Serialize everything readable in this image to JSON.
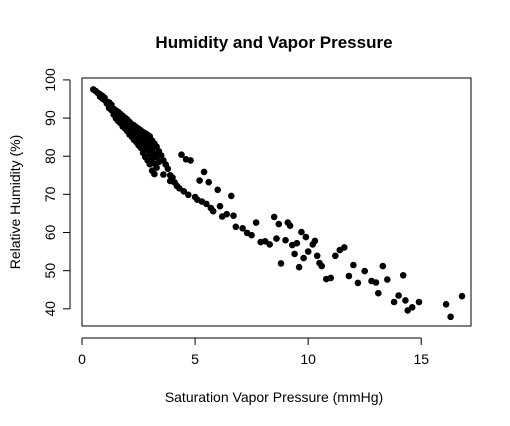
{
  "chart_data": {
    "type": "scatter",
    "title": "Humidity and Vapor Pressure",
    "xlabel": "Saturation Vapor Pressure (mmHg)",
    "ylabel": "Relative Humidity (%)",
    "xlim": [
      0,
      17.2
    ],
    "ylim": [
      35.5,
      100.5
    ],
    "xticks": [
      0,
      5,
      10,
      15
    ],
    "xtick_labels": [
      "0",
      "5",
      "10",
      "15"
    ],
    "yticks": [
      40,
      50,
      60,
      70,
      80,
      90,
      100
    ],
    "ytick_labels": [
      "40",
      "50",
      "60",
      "70",
      "80",
      "90",
      "100"
    ],
    "grid": false,
    "legend": "none",
    "marker_color": "#000000",
    "points": [
      [
        0.5,
        97.5
      ],
      [
        0.6,
        97.1
      ],
      [
        0.7,
        96.6
      ],
      [
        0.8,
        96.2
      ],
      [
        0.8,
        95.6
      ],
      [
        0.9,
        95.8
      ],
      [
        0.9,
        95.1
      ],
      [
        1.0,
        94.7
      ],
      [
        1.0,
        95.3
      ],
      [
        1.1,
        94.3
      ],
      [
        1.1,
        93.8
      ],
      [
        1.2,
        94.1
      ],
      [
        1.2,
        93.2
      ],
      [
        1.2,
        92.6
      ],
      [
        1.3,
        93.5
      ],
      [
        1.3,
        92.8
      ],
      [
        1.3,
        92.1
      ],
      [
        1.4,
        92.4
      ],
      [
        1.4,
        91.6
      ],
      [
        1.4,
        90.9
      ],
      [
        1.5,
        92.0
      ],
      [
        1.5,
        91.3
      ],
      [
        1.5,
        90.6
      ],
      [
        1.5,
        89.9
      ],
      [
        1.6,
        91.6
      ],
      [
        1.6,
        90.8
      ],
      [
        1.6,
        90.0
      ],
      [
        1.6,
        89.2
      ],
      [
        1.7,
        91.1
      ],
      [
        1.7,
        90.3
      ],
      [
        1.7,
        89.5
      ],
      [
        1.7,
        88.7
      ],
      [
        1.8,
        90.6
      ],
      [
        1.8,
        89.6
      ],
      [
        1.8,
        88.6
      ],
      [
        1.8,
        87.8
      ],
      [
        1.9,
        90.1
      ],
      [
        1.9,
        89.1
      ],
      [
        1.9,
        88.2
      ],
      [
        1.9,
        87.3
      ],
      [
        2.0,
        89.6
      ],
      [
        2.0,
        88.5
      ],
      [
        2.0,
        87.6
      ],
      [
        2.0,
        86.6
      ],
      [
        2.1,
        89.0
      ],
      [
        2.1,
        87.9
      ],
      [
        2.1,
        86.9
      ],
      [
        2.1,
        85.7
      ],
      [
        2.2,
        88.4
      ],
      [
        2.2,
        87.3
      ],
      [
        2.2,
        86.2
      ],
      [
        2.2,
        85.1
      ],
      [
        2.3,
        88.1
      ],
      [
        2.3,
        86.8
      ],
      [
        2.3,
        85.6
      ],
      [
        2.3,
        84.3
      ],
      [
        2.4,
        87.6
      ],
      [
        2.4,
        86.3
      ],
      [
        2.4,
        84.9
      ],
      [
        2.4,
        83.7
      ],
      [
        2.5,
        87.2
      ],
      [
        2.5,
        85.8
      ],
      [
        2.5,
        84.3
      ],
      [
        2.5,
        82.9
      ],
      [
        2.6,
        86.8
      ],
      [
        2.6,
        85.2
      ],
      [
        2.6,
        83.6
      ],
      [
        2.6,
        82.2
      ],
      [
        2.7,
        86.3
      ],
      [
        2.7,
        84.7
      ],
      [
        2.7,
        82.8
      ],
      [
        2.7,
        80.9
      ],
      [
        2.8,
        86.0
      ],
      [
        2.8,
        84.2
      ],
      [
        2.8,
        82.3
      ],
      [
        2.8,
        79.8
      ],
      [
        2.9,
        85.6
      ],
      [
        2.9,
        83.7
      ],
      [
        2.9,
        81.6
      ],
      [
        2.9,
        78.9
      ],
      [
        3.0,
        85.2
      ],
      [
        3.0,
        83.0
      ],
      [
        3.0,
        80.6
      ],
      [
        3.0,
        77.9
      ],
      [
        3.1,
        84.1
      ],
      [
        3.1,
        81.8
      ],
      [
        3.1,
        79.4
      ],
      [
        3.1,
        76.2
      ],
      [
        3.2,
        83.3
      ],
      [
        3.2,
        80.7
      ],
      [
        3.2,
        78.1
      ],
      [
        3.2,
        75.3
      ],
      [
        3.3,
        82.5
      ],
      [
        3.3,
        79.8
      ],
      [
        3.3,
        77.0
      ],
      [
        3.4,
        81.3
      ],
      [
        3.4,
        78.5
      ],
      [
        3.5,
        80.2
      ],
      [
        3.6,
        78.9
      ],
      [
        3.6,
        75.2
      ],
      [
        3.7,
        77.8
      ],
      [
        3.8,
        76.7
      ],
      [
        3.9,
        75.0
      ],
      [
        3.9,
        73.5
      ],
      [
        4.0,
        74.4
      ],
      [
        4.1,
        73.1
      ],
      [
        4.2,
        72.2
      ],
      [
        4.3,
        71.6
      ],
      [
        4.4,
        80.4
      ],
      [
        4.5,
        70.8
      ],
      [
        4.6,
        79.2
      ],
      [
        4.7,
        69.9
      ],
      [
        4.8,
        78.9
      ],
      [
        5.0,
        69.3
      ],
      [
        5.1,
        68.6
      ],
      [
        5.2,
        73.6
      ],
      [
        5.3,
        68.1
      ],
      [
        5.4,
        75.9
      ],
      [
        5.5,
        67.5
      ],
      [
        5.6,
        73.2
      ],
      [
        5.7,
        66.4
      ],
      [
        5.8,
        65.6
      ],
      [
        6.0,
        71.2
      ],
      [
        6.1,
        66.9
      ],
      [
        6.2,
        64.2
      ],
      [
        6.4,
        64.8
      ],
      [
        6.6,
        69.6
      ],
      [
        6.7,
        64.4
      ],
      [
        6.8,
        61.5
      ],
      [
        7.1,
        61.1
      ],
      [
        7.3,
        59.9
      ],
      [
        7.5,
        59.3
      ],
      [
        7.7,
        62.6
      ],
      [
        7.9,
        57.5
      ],
      [
        8.1,
        57.7
      ],
      [
        8.3,
        56.9
      ],
      [
        8.5,
        64.1
      ],
      [
        8.6,
        58.4
      ],
      [
        8.7,
        62.2
      ],
      [
        8.8,
        51.9
      ],
      [
        9.0,
        58.0
      ],
      [
        9.1,
        62.6
      ],
      [
        9.2,
        61.8
      ],
      [
        9.3,
        56.7
      ],
      [
        9.4,
        54.4
      ],
      [
        9.5,
        57.2
      ],
      [
        9.6,
        50.9
      ],
      [
        9.7,
        60.1
      ],
      [
        9.8,
        53.3
      ],
      [
        9.9,
        58.8
      ],
      [
        10.0,
        55.0
      ],
      [
        10.2,
        56.9
      ],
      [
        10.3,
        57.8
      ],
      [
        10.4,
        53.9
      ],
      [
        10.5,
        52.0
      ],
      [
        10.6,
        51.2
      ],
      [
        10.8,
        47.8
      ],
      [
        11.0,
        48.1
      ],
      [
        11.2,
        53.9
      ],
      [
        11.4,
        55.4
      ],
      [
        11.6,
        56.1
      ],
      [
        11.8,
        48.6
      ],
      [
        12.0,
        51.5
      ],
      [
        12.2,
        46.8
      ],
      [
        12.5,
        49.9
      ],
      [
        12.8,
        47.3
      ],
      [
        13.0,
        46.9
      ],
      [
        13.1,
        44.1
      ],
      [
        13.3,
        51.2
      ],
      [
        13.5,
        47.7
      ],
      [
        13.8,
        41.8
      ],
      [
        14.0,
        43.5
      ],
      [
        14.2,
        48.8
      ],
      [
        14.3,
        42.2
      ],
      [
        14.4,
        39.6
      ],
      [
        14.6,
        40.4
      ],
      [
        14.9,
        41.8
      ],
      [
        16.1,
        41.2
      ],
      [
        16.3,
        37.9
      ],
      [
        16.8,
        43.3
      ]
    ]
  }
}
